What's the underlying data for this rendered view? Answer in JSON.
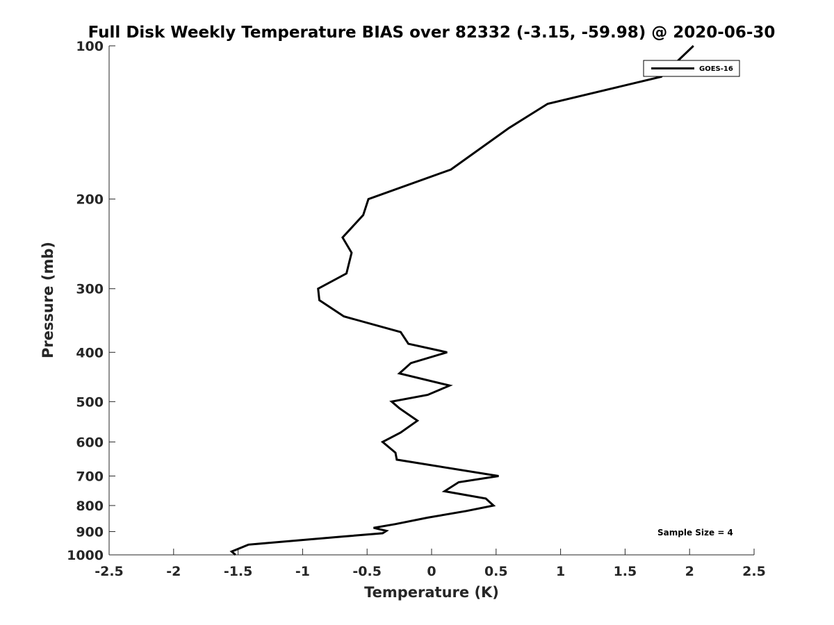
{
  "chart_data": {
    "type": "line",
    "title": "Full Disk Weekly Temperature BIAS over 82332 (-3.15, -59.98) @ 2020-06-30",
    "xlabel": "Temperature (K)",
    "ylabel": "Pressure (mb)",
    "xlim": [
      -2.5,
      2.5
    ],
    "ylim": [
      100,
      1000
    ],
    "y_scale": "log",
    "y_reversed": true,
    "x_ticks": [
      -2.5,
      -2,
      -1.5,
      -1,
      -0.5,
      0,
      0.5,
      1,
      1.5,
      2,
      2.5
    ],
    "x_tick_labels": [
      "-2.5",
      "-2",
      "-1.5",
      "-1",
      "-0.5",
      "0",
      "0.5",
      "1",
      "1.5",
      "2",
      "2.5"
    ],
    "y_ticks": [
      100,
      200,
      300,
      400,
      500,
      600,
      700,
      800,
      900,
      1000
    ],
    "y_tick_labels": [
      "100",
      "200",
      "300",
      "400",
      "500",
      "600",
      "700",
      "800",
      "900",
      "1000"
    ],
    "legend_position": "top-right",
    "annotation": "Sample Size = 4",
    "series": [
      {
        "name": "GOES-16",
        "color": "#000000",
        "x": [
          2.03,
          1.78,
          0.9,
          0.6,
          0.15,
          -0.49,
          -0.53,
          -0.69,
          -0.62,
          -0.66,
          -0.88,
          -0.87,
          -0.68,
          -0.24,
          -0.18,
          0.12,
          -0.16,
          -0.25,
          0.14,
          -0.03,
          -0.31,
          -0.25,
          -0.11,
          -0.24,
          -0.38,
          -0.28,
          -0.27,
          0.52,
          0.21,
          0.1,
          0.42,
          0.48,
          0.27,
          -0.03,
          -0.28,
          -0.45,
          -0.35,
          -0.38,
          -0.68,
          -1.42,
          -1.55,
          -1.52
        ],
        "y": [
          100,
          115,
          130,
          145,
          175,
          200,
          215,
          238,
          255,
          280,
          300,
          316,
          340,
          365,
          385,
          400,
          420,
          440,
          465,
          485,
          500,
          515,
          545,
          575,
          600,
          630,
          650,
          700,
          720,
          750,
          775,
          800,
          820,
          845,
          870,
          885,
          897,
          907,
          920,
          955,
          985,
          1000
        ]
      }
    ]
  }
}
